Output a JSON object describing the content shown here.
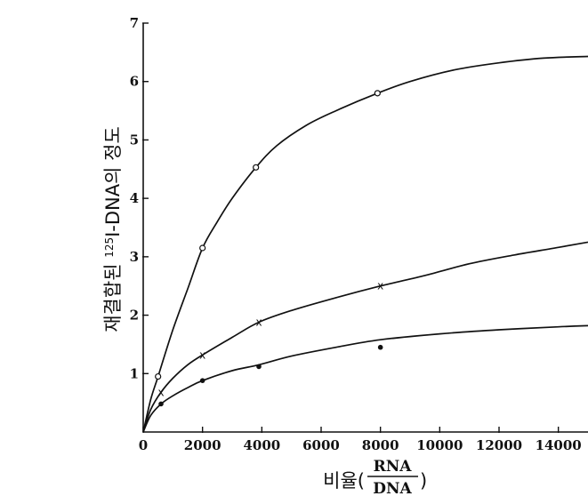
{
  "chart_data": {
    "type": "line",
    "xlabel_prefix": "비율(",
    "xlabel_numerator": "RNA",
    "xlabel_denominator": "DNA",
    "xlabel_suffix": ")",
    "ylabel_main": "재결합된 ",
    "ylabel_sup": "125",
    "ylabel_rest": "I-DNA의 정도",
    "xlim": [
      0,
      15000
    ],
    "ylim": [
      0,
      7
    ],
    "x_ticks": [
      0,
      2000,
      4000,
      6000,
      8000,
      10000,
      12000,
      14000
    ],
    "x_tick_labels": [
      "0",
      "2000",
      "4000",
      "6000",
      "8000",
      "10000",
      "12000",
      "14000"
    ],
    "y_ticks": [
      1,
      2,
      3,
      4,
      5,
      6,
      7
    ],
    "y_tick_labels": [
      "1",
      "2",
      "3",
      "4",
      "5",
      "6",
      "7"
    ],
    "grid": false,
    "series": [
      {
        "marker": "open-circle",
        "points": [
          [
            500,
            0.95
          ],
          [
            2000,
            3.15
          ],
          [
            3800,
            4.53
          ],
          [
            7900,
            5.8
          ]
        ],
        "curve": [
          [
            0,
            0
          ],
          [
            250,
            0.55
          ],
          [
            500,
            0.95
          ],
          [
            1000,
            1.75
          ],
          [
            1500,
            2.45
          ],
          [
            2000,
            3.15
          ],
          [
            2500,
            3.6
          ],
          [
            3000,
            4.0
          ],
          [
            3800,
            4.53
          ],
          [
            4500,
            4.9
          ],
          [
            5500,
            5.25
          ],
          [
            6500,
            5.5
          ],
          [
            7900,
            5.8
          ],
          [
            9000,
            6.0
          ],
          [
            10500,
            6.2
          ],
          [
            12000,
            6.32
          ],
          [
            13500,
            6.4
          ],
          [
            15000,
            6.43
          ]
        ]
      },
      {
        "marker": "x",
        "points": [
          [
            600,
            0.68
          ],
          [
            2000,
            1.32
          ],
          [
            3900,
            1.88
          ],
          [
            8000,
            2.5
          ]
        ],
        "curve": [
          [
            0,
            0
          ],
          [
            250,
            0.38
          ],
          [
            600,
            0.68
          ],
          [
            1000,
            0.92
          ],
          [
            1500,
            1.15
          ],
          [
            2000,
            1.32
          ],
          [
            3000,
            1.62
          ],
          [
            3900,
            1.88
          ],
          [
            5000,
            2.08
          ],
          [
            6500,
            2.3
          ],
          [
            8000,
            2.5
          ],
          [
            9500,
            2.68
          ],
          [
            11000,
            2.88
          ],
          [
            12500,
            3.03
          ],
          [
            14000,
            3.16
          ],
          [
            15000,
            3.25
          ]
        ]
      },
      {
        "marker": "filled-dot",
        "points": [
          [
            600,
            0.48
          ],
          [
            2000,
            0.88
          ],
          [
            3900,
            1.12
          ],
          [
            8000,
            1.45
          ]
        ],
        "curve": [
          [
            0,
            0
          ],
          [
            250,
            0.28
          ],
          [
            600,
            0.48
          ],
          [
            1000,
            0.62
          ],
          [
            1500,
            0.76
          ],
          [
            2000,
            0.88
          ],
          [
            3000,
            1.05
          ],
          [
            3900,
            1.15
          ],
          [
            5000,
            1.3
          ],
          [
            6500,
            1.45
          ],
          [
            8000,
            1.58
          ],
          [
            10000,
            1.68
          ],
          [
            12000,
            1.75
          ],
          [
            14000,
            1.8
          ],
          [
            15000,
            1.82
          ]
        ]
      }
    ]
  }
}
